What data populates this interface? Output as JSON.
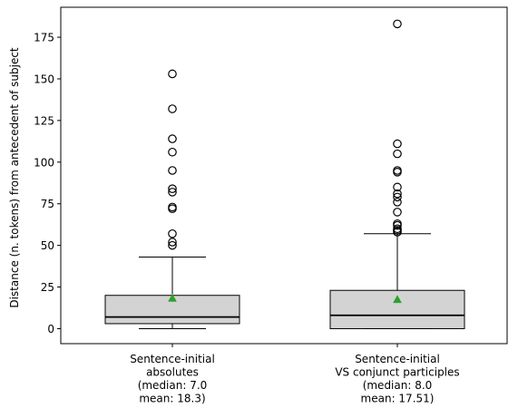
{
  "chart_data": {
    "type": "boxplot",
    "title": "",
    "xlabel": "",
    "ylabel": "Distance (n. tokens) from antecedent of subject",
    "ylim": [
      -9,
      193
    ],
    "yticks": [
      0,
      25,
      50,
      75,
      100,
      125,
      150,
      175
    ],
    "grid": false,
    "colors": {
      "box_fill": "#d3d3d3",
      "box_edge": "#000000",
      "median": "#000000",
      "mean_marker": "#2ca02c",
      "outlier_edge": "#000000"
    },
    "groups": [
      {
        "label_lines": [
          "Sentence-initial",
          "absolutes",
          "(median: 7.0",
          "mean: 18.3)"
        ],
        "whisker_low": 0,
        "q1": 3,
        "median": 7,
        "q3": 20,
        "whisker_high": 43,
        "mean": 18.3,
        "outliers": [
          50,
          52,
          57,
          72,
          73,
          82,
          84,
          95,
          106,
          114,
          132,
          153
        ]
      },
      {
        "label_lines": [
          "Sentence-initial",
          "VS conjunct participles",
          "(median: 8.0",
          "mean: 17.51)"
        ],
        "whisker_low": 0,
        "q1": 0,
        "median": 8,
        "q3": 23,
        "whisker_high": 57,
        "mean": 17.51,
        "outliers": [
          58,
          59,
          60,
          62,
          63,
          70,
          76,
          79,
          81,
          85,
          94,
          95,
          105,
          111,
          183
        ]
      }
    ]
  }
}
